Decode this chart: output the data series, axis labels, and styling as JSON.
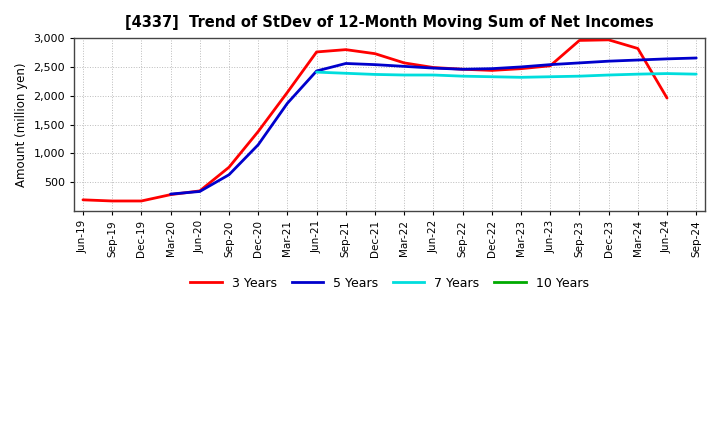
{
  "title": "[4337]  Trend of StDev of 12-Month Moving Sum of Net Incomes",
  "ylabel": "Amount (million yen)",
  "background_color": "#ffffff",
  "plot_bg_color": "#ffffff",
  "grid_color": "#bbbbbb",
  "ylim": [
    0,
    3000
  ],
  "yticks": [
    500,
    1000,
    1500,
    2000,
    2500,
    3000
  ],
  "x_labels": [
    "Jun-19",
    "Sep-19",
    "Dec-19",
    "Mar-20",
    "Jun-20",
    "Sep-20",
    "Dec-20",
    "Mar-21",
    "Jun-21",
    "Sep-21",
    "Dec-21",
    "Mar-22",
    "Jun-22",
    "Sep-22",
    "Dec-22",
    "Mar-23",
    "Jun-23",
    "Sep-23",
    "Dec-23",
    "Mar-24",
    "Jun-24",
    "Sep-24"
  ],
  "series": {
    "3 Years": {
      "color": "#ff0000",
      "linewidth": 2.0,
      "data_x": [
        0,
        1,
        2,
        3,
        4,
        5,
        6,
        7,
        8,
        9,
        10,
        11,
        12,
        13,
        14,
        15,
        16,
        17,
        18,
        19,
        20
      ],
      "data_y": [
        195,
        175,
        175,
        285,
        350,
        760,
        1380,
        2060,
        2760,
        2800,
        2730,
        2570,
        2490,
        2460,
        2440,
        2470,
        2520,
        2960,
        2970,
        2820,
        1960
      ]
    },
    "5 Years": {
      "color": "#0000cc",
      "linewidth": 2.0,
      "data_x": [
        3,
        4,
        5,
        6,
        7,
        8,
        9,
        10,
        11,
        12,
        13,
        14,
        15,
        16,
        17,
        18,
        19,
        20,
        21
      ],
      "data_y": [
        295,
        340,
        630,
        1150,
        1870,
        2430,
        2560,
        2540,
        2510,
        2480,
        2460,
        2470,
        2500,
        2540,
        2570,
        2600,
        2620,
        2640,
        2655
      ]
    },
    "7 Years": {
      "color": "#00dddd",
      "linewidth": 2.0,
      "data_x": [
        8,
        9,
        10,
        11,
        12,
        13,
        14,
        15,
        16,
        17,
        18,
        19,
        20,
        21
      ],
      "data_y": [
        2410,
        2390,
        2370,
        2360,
        2360,
        2340,
        2330,
        2320,
        2330,
        2340,
        2360,
        2375,
        2385,
        2375
      ]
    },
    "10 Years": {
      "color": "#00aa00",
      "linewidth": 2.0,
      "data_x": [],
      "data_y": []
    }
  },
  "legend_entries": [
    "3 Years",
    "5 Years",
    "7 Years",
    "10 Years"
  ]
}
